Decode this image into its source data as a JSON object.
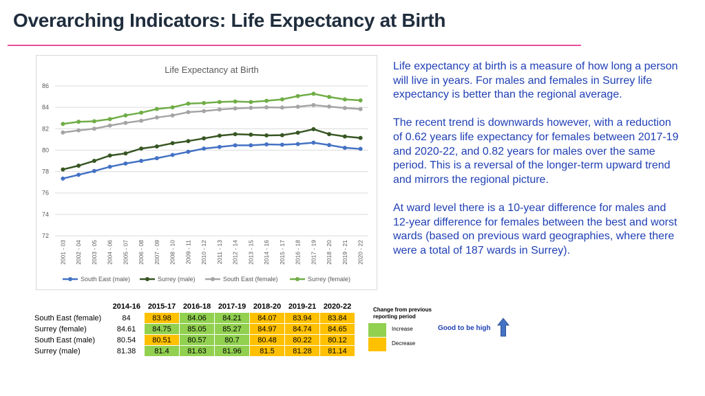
{
  "page": {
    "title": "Overarching Indicators: Life Expectancy at Birth"
  },
  "description": [
    "Life expectancy at birth is a measure of how long a person will live in years. For males and females in Surrey life expectancy is better than the regional average.",
    "The recent trend is downwards however, with a reduction of 0.62 years life expectancy for females between 2017-19 and 2020-22, and 0.82 years for males over the same period. This is a reversal of the longer-term upward trend and mirrors the regional picture.",
    "At ward level there is a 10-year difference for males and 12-year difference for females between the best and worst wards (based on previous ward geographies, where there were a total of 187 wards in Surrey)."
  ],
  "chart_data": {
    "type": "line",
    "title": "Life Expectancy at Birth",
    "xlabel": "",
    "ylabel": "",
    "ylim": [
      72,
      86
    ],
    "yticks": [
      72,
      74,
      76,
      78,
      80,
      82,
      84,
      86
    ],
    "grid": true,
    "legend_position": "bottom",
    "categories": [
      "2001 - 03",
      "2002 - 04",
      "2003 - 05",
      "2004 - 06",
      "2005 - 07",
      "2006 - 08",
      "2007 - 09",
      "2008 - 10",
      "2009 - 11",
      "2010 - 12",
      "2011 - 13",
      "2012 - 14",
      "2013 - 15",
      "2014 - 16",
      "2015 - 17",
      "2016 - 18",
      "2017 - 19",
      "2018 - 20",
      "2019 - 21",
      "2020 - 22"
    ],
    "series": [
      {
        "name": "South East (male)",
        "color": "#4472c4",
        "values": [
          77.35,
          77.7,
          78.05,
          78.45,
          78.75,
          79.0,
          79.25,
          79.55,
          79.85,
          80.15,
          80.3,
          80.45,
          80.45,
          80.54,
          80.51,
          80.57,
          80.7,
          80.48,
          80.22,
          80.12
        ]
      },
      {
        "name": "Surrey (male)",
        "color": "#375623",
        "values": [
          78.2,
          78.55,
          79.0,
          79.5,
          79.7,
          80.15,
          80.35,
          80.65,
          80.85,
          81.1,
          81.35,
          81.5,
          81.45,
          81.38,
          81.4,
          81.63,
          81.96,
          81.5,
          81.28,
          81.14
        ]
      },
      {
        "name": "South East (female)",
        "color": "#a5a5a5",
        "values": [
          81.65,
          81.85,
          82.0,
          82.3,
          82.55,
          82.75,
          83.05,
          83.25,
          83.55,
          83.65,
          83.8,
          83.9,
          83.95,
          84.0,
          83.98,
          84.06,
          84.21,
          84.07,
          83.94,
          83.84
        ]
      },
      {
        "name": "Surrey (female)",
        "color": "#70ad47",
        "values": [
          82.45,
          82.65,
          82.7,
          82.9,
          83.25,
          83.5,
          83.85,
          84.0,
          84.35,
          84.4,
          84.5,
          84.55,
          84.5,
          84.61,
          84.75,
          85.05,
          85.27,
          84.97,
          84.74,
          84.65
        ]
      }
    ]
  },
  "table": {
    "columns": [
      "2014-16",
      "2015-17",
      "2016-18",
      "2017-19",
      "2018-20",
      "2019-21",
      "2020-22"
    ],
    "rows": [
      {
        "label": "South East (female)",
        "values": [
          "84",
          "83.98",
          "84.06",
          "84.21",
          "84.07",
          "83.94",
          "83.84"
        ],
        "colors": [
          "none",
          "amber",
          "green",
          "green",
          "amber",
          "amber",
          "amber"
        ]
      },
      {
        "label": "Surrey (female)",
        "values": [
          "84.61",
          "84.75",
          "85.05",
          "85.27",
          "84.97",
          "84.74",
          "84.65"
        ],
        "colors": [
          "none",
          "green",
          "green",
          "green",
          "amber",
          "amber",
          "amber"
        ]
      },
      {
        "label": "South East (male)",
        "values": [
          "80.54",
          "80.51",
          "80.57",
          "80.7",
          "80.48",
          "80.22",
          "80.12"
        ],
        "colors": [
          "none",
          "amber",
          "green",
          "green",
          "amber",
          "amber",
          "amber"
        ]
      },
      {
        "label": "Surrey (male)",
        "values": [
          "81.38",
          "81.4",
          "81.63",
          "81.96",
          "81.5",
          "81.28",
          "81.14"
        ],
        "colors": [
          "none",
          "green",
          "green",
          "green",
          "amber",
          "amber",
          "amber"
        ]
      }
    ]
  },
  "key": {
    "heading": "Change from previous reporting period",
    "increase": "Increase",
    "decrease": "Decrease",
    "increase_color": "#92d050",
    "decrease_color": "#ffc000",
    "good_label": "Good to be high",
    "arrow_icon": "up-arrow-icon",
    "arrow_color": "#4472c4"
  }
}
